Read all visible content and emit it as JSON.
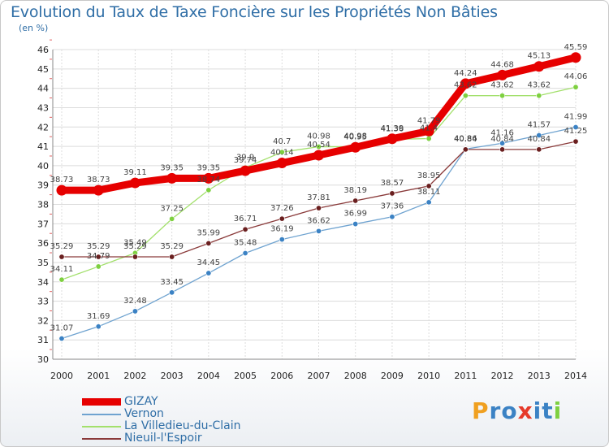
{
  "chart_data": {
    "type": "line",
    "title": "Evolution du Taux de Taxe Foncière sur les Propriétés Non Bâties",
    "ylabel": "(en %)",
    "xlabel": "",
    "ylim": [
      30,
      46
    ],
    "yticks": [
      "30",
      "31",
      "32",
      "33",
      "34",
      "35",
      "36",
      "37",
      "38",
      "39",
      "40",
      "41",
      "42",
      "43",
      "44",
      "45",
      "46"
    ],
    "categories": [
      "2000",
      "2001",
      "2002",
      "2003",
      "2004",
      "2005",
      "2006",
      "2007",
      "2008",
      "2009",
      "2010",
      "2011",
      "2012",
      "2013",
      "2014"
    ],
    "series": [
      {
        "name": "GIZAY",
        "color": "#e60000",
        "pointColor": "#e60000",
        "values": [
          38.73,
          38.73,
          39.11,
          39.35,
          39.35,
          39.74,
          40.14,
          40.54,
          40.95,
          41.39,
          41.79,
          44.24,
          44.68,
          45.13,
          45.59
        ],
        "labels": [
          "38.73",
          "38.73",
          "39.11",
          "39.35",
          "39.35",
          "39.74",
          "40.14",
          "40.54",
          "40.95",
          "41.39",
          "41.79",
          "44.24",
          "44.68",
          "45.13",
          "45.59"
        ]
      },
      {
        "name": "Vernon",
        "color": "#6fa3d0",
        "pointColor": "#3b82c4",
        "values": [
          31.07,
          31.69,
          32.48,
          33.45,
          34.45,
          35.48,
          36.19,
          36.62,
          36.99,
          37.36,
          38.11,
          40.86,
          41.16,
          41.57,
          41.99
        ],
        "labels": [
          "31.07",
          "31.69",
          "32.48",
          "33.45",
          "34.45",
          "35.48",
          "36.19",
          "36.62",
          "36.99",
          "37.36",
          "38.11",
          "40.86",
          "41.16",
          "41.57",
          "41.99"
        ]
      },
      {
        "name": "La Villedieu-du-Clain",
        "color": "#a3e06c",
        "pointColor": "#7ed040",
        "values": [
          34.11,
          34.79,
          35.49,
          37.25,
          38.74,
          39.9,
          40.7,
          40.98,
          40.98,
          41.36,
          41.4,
          43.62,
          43.62,
          43.62,
          44.06
        ],
        "labels": [
          "34.11",
          "34.79",
          "35.49",
          "37.25",
          "38.74",
          "39.9",
          "40.7",
          "40.98",
          "40.98",
          "41.36",
          "41.4",
          "43.62",
          "43.62",
          "43.62",
          "44.06"
        ]
      },
      {
        "name": "Nieuil-l'Espoir",
        "color": "#8a3a3a",
        "pointColor": "#6a1f1f",
        "values": [
          35.29,
          35.29,
          35.29,
          35.29,
          35.99,
          36.71,
          37.26,
          37.81,
          38.19,
          38.57,
          38.95,
          40.84,
          40.84,
          40.84,
          41.25
        ],
        "labels": [
          "35.29",
          "35.29",
          "35.29",
          "35.29",
          "35.99",
          "36.71",
          "37.26",
          "37.81",
          "38.19",
          "38.57",
          "38.95",
          "40.84",
          "40.84",
          "40.84",
          "41.25"
        ]
      }
    ]
  },
  "legend": {
    "items": [
      {
        "label": "GIZAY",
        "color": "#e60000"
      },
      {
        "label": "Vernon",
        "color": "#6fa3d0"
      },
      {
        "label": "La Villedieu-du-Clain",
        "color": "#a3e06c"
      },
      {
        "label": "Nieuil-l'Espoir",
        "color": "#8a3a3a"
      }
    ]
  },
  "logo": {
    "parts": [
      "P",
      "r",
      "o",
      "x",
      "i",
      "t",
      "i"
    ],
    "colors": [
      "#f0a020",
      "#3b82c4",
      "#3b82c4",
      "#e63a2a",
      "#3b82c4",
      "#3b82c4",
      "#7ed040"
    ]
  }
}
